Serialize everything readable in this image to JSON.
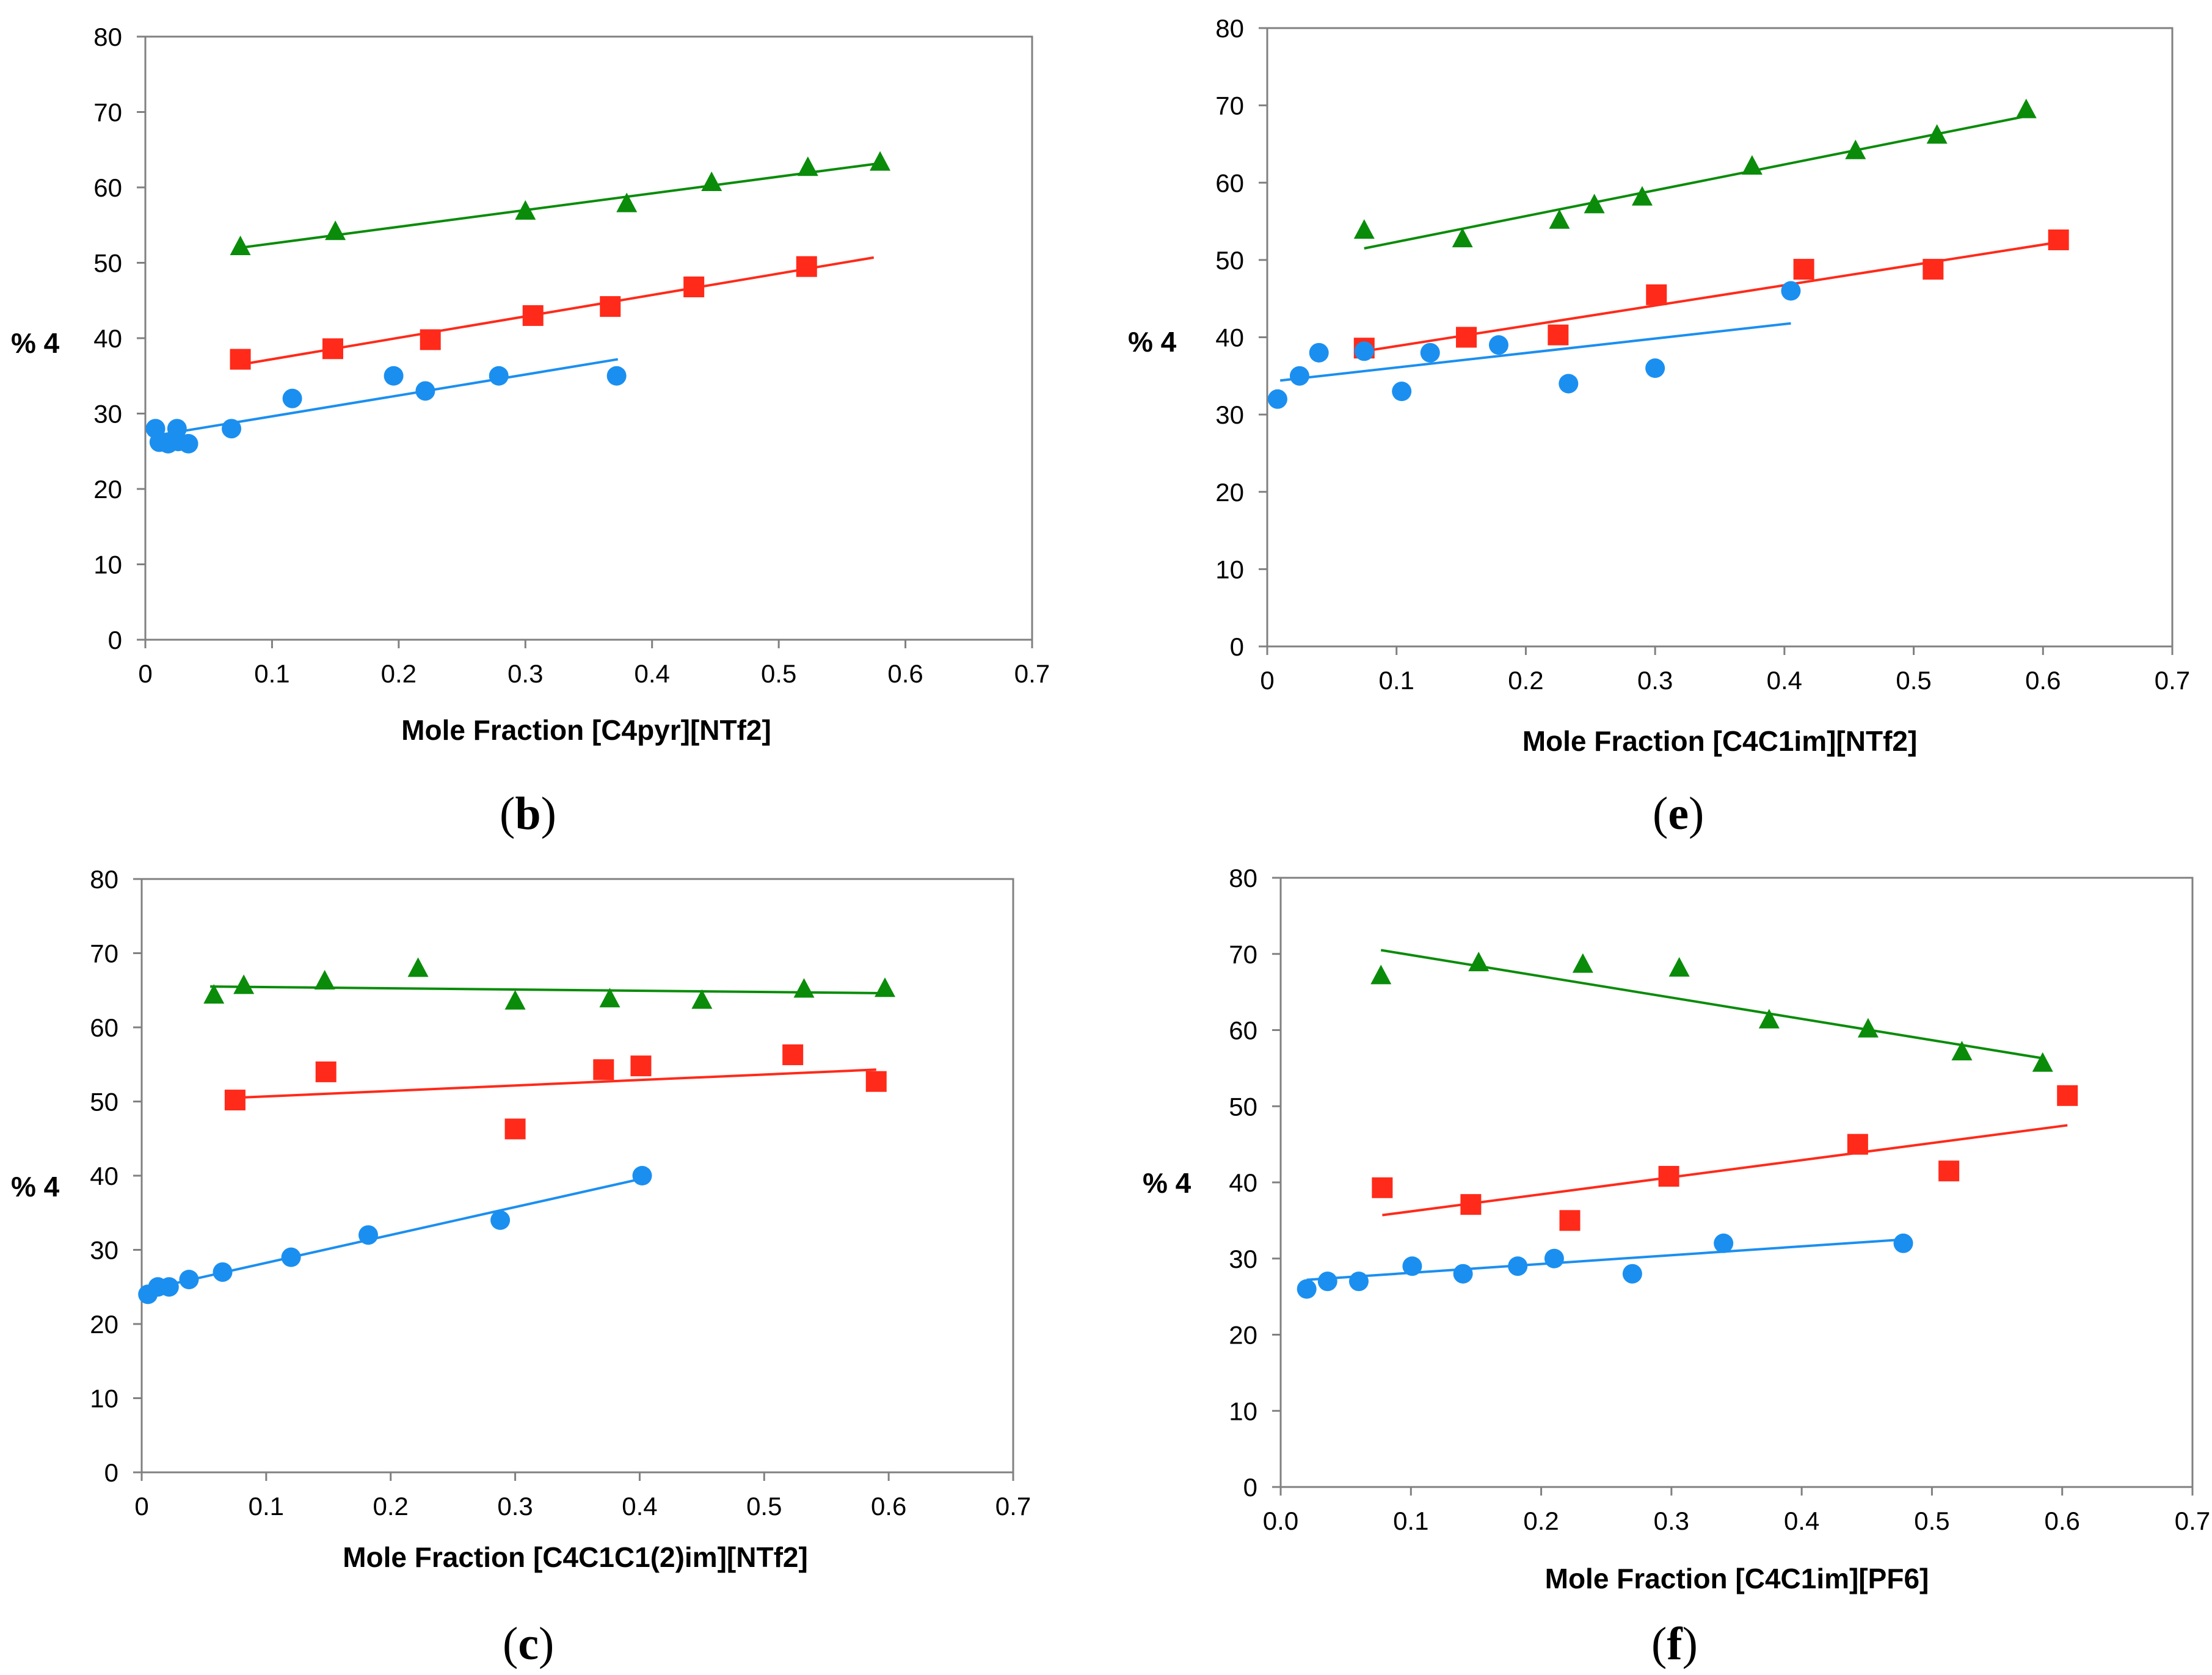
{
  "colors": {
    "green": "#0a8c0a",
    "red": "#ff2a1a",
    "blue": "#1b8ff0",
    "axis": "#808080"
  },
  "chart_data": [
    {
      "id": "b",
      "caption": "b",
      "type": "scatter",
      "title": "",
      "xlabel": "Mole Fraction [C4pyr][NTf2]",
      "ylabel": "% 4",
      "xlim": [
        0,
        0.7
      ],
      "ylim": [
        0,
        80
      ],
      "xticks": [
        "0",
        "0.1",
        "0.2",
        "0.3",
        "0.4",
        "0.5",
        "0.6",
        "0.7"
      ],
      "yticks": [
        "0",
        "10",
        "20",
        "30",
        "40",
        "50",
        "60",
        "70",
        "80"
      ],
      "series": [
        {
          "name": "green",
          "marker": "triangle",
          "color": "#0a8c0a",
          "points": [
            [
              0.075,
              52
            ],
            [
              0.15,
              54
            ],
            [
              0.3,
              56.7
            ],
            [
              0.38,
              57.7
            ],
            [
              0.447,
              60.5
            ],
            [
              0.523,
              62.5
            ],
            [
              0.58,
              63.2
            ]
          ],
          "fit": [
            [
              0.075,
              52
            ],
            [
              0.58,
              63.2
            ]
          ]
        },
        {
          "name": "red",
          "marker": "square",
          "color": "#ff2a1a",
          "points": [
            [
              0.075,
              37.2
            ],
            [
              0.148,
              38.6
            ],
            [
              0.225,
              39.8
            ],
            [
              0.306,
              43
            ],
            [
              0.367,
              44.2
            ],
            [
              0.433,
              46.8
            ],
            [
              0.522,
              49.5
            ]
          ],
          "fit": [
            [
              0.075,
              36.5
            ],
            [
              0.575,
              50.7
            ]
          ]
        },
        {
          "name": "blue",
          "marker": "circle",
          "color": "#1b8ff0",
          "points": [
            [
              0.008,
              28
            ],
            [
              0.011,
              26.2
            ],
            [
              0.018,
              26
            ],
            [
              0.025,
              28
            ],
            [
              0.026,
              26.3
            ],
            [
              0.034,
              26
            ],
            [
              0.068,
              28
            ],
            [
              0.116,
              32
            ],
            [
              0.196,
              35
            ],
            [
              0.221,
              33
            ],
            [
              0.279,
              35
            ],
            [
              0.372,
              35
            ]
          ],
          "fit": [
            [
              0.005,
              27
            ],
            [
              0.373,
              37.2
            ]
          ]
        }
      ]
    },
    {
      "id": "e",
      "caption": "e",
      "type": "scatter",
      "title": "",
      "xlabel": "Mole Fraction [C4C1im][NTf2]",
      "ylabel": "% 4",
      "xlim": [
        0,
        0.7
      ],
      "ylim": [
        0,
        80
      ],
      "xticks": [
        "0",
        "0.1",
        "0.2",
        "0.3",
        "0.4",
        "0.5",
        "0.6",
        "0.7"
      ],
      "yticks": [
        "0",
        "10",
        "20",
        "30",
        "40",
        "50",
        "60",
        "70",
        "80"
      ],
      "series": [
        {
          "name": "green",
          "marker": "triangle",
          "color": "#0a8c0a",
          "points": [
            [
              0.075,
              53.7
            ],
            [
              0.151,
              52.6
            ],
            [
              0.226,
              55
            ],
            [
              0.253,
              57
            ],
            [
              0.29,
              58
            ],
            [
              0.375,
              62
            ],
            [
              0.455,
              64
            ],
            [
              0.518,
              66
            ],
            [
              0.587,
              69.3
            ]
          ],
          "fit": [
            [
              0.075,
              51.5
            ],
            [
              0.59,
              68.7
            ]
          ]
        },
        {
          "name": "red",
          "marker": "square",
          "color": "#ff2a1a",
          "points": [
            [
              0.075,
              38.6
            ],
            [
              0.154,
              40
            ],
            [
              0.225,
              40.3
            ],
            [
              0.301,
              45.5
            ],
            [
              0.415,
              48.8
            ],
            [
              0.515,
              48.8
            ],
            [
              0.612,
              52.6
            ]
          ],
          "fit": [
            [
              0.075,
              38.2
            ],
            [
              0.612,
              52.3
            ]
          ]
        },
        {
          "name": "blue",
          "marker": "circle",
          "color": "#1b8ff0",
          "points": [
            [
              0.008,
              32
            ],
            [
              0.025,
              35
            ],
            [
              0.04,
              38
            ],
            [
              0.075,
              38.2
            ],
            [
              0.104,
              33
            ],
            [
              0.126,
              38
            ],
            [
              0.179,
              39
            ],
            [
              0.233,
              34
            ],
            [
              0.3,
              36
            ],
            [
              0.405,
              46
            ]
          ],
          "fit": [
            [
              0.01,
              34.4
            ],
            [
              0.405,
              41.8
            ]
          ]
        }
      ]
    },
    {
      "id": "c",
      "caption": "c",
      "type": "scatter",
      "title": "",
      "xlabel": "Mole Fraction [C4C1C1(2)im][NTf2]",
      "ylabel": "% 4",
      "xlim": [
        0,
        0.7
      ],
      "ylim": [
        0,
        80
      ],
      "xticks": [
        "0",
        "0.1",
        "0.2",
        "0.3",
        "0.4",
        "0.5",
        "0.6",
        "0.7"
      ],
      "yticks": [
        "0",
        "10",
        "20",
        "30",
        "40",
        "50",
        "60",
        "70",
        "80"
      ],
      "series": [
        {
          "name": "green",
          "marker": "triangle",
          "color": "#0a8c0a",
          "points": [
            [
              0.058,
              64.2
            ],
            [
              0.082,
              65.5
            ],
            [
              0.147,
              66.1
            ],
            [
              0.222,
              67.8
            ],
            [
              0.3,
              63.4
            ],
            [
              0.376,
              63.7
            ],
            [
              0.45,
              63.5
            ],
            [
              0.532,
              65
            ],
            [
              0.597,
              65.1
            ]
          ],
          "fit": [
            [
              0.055,
              65.5
            ],
            [
              0.6,
              64.6
            ]
          ]
        },
        {
          "name": "red",
          "marker": "square",
          "color": "#ff2a1a",
          "points": [
            [
              0.075,
              50.2
            ],
            [
              0.148,
              54
            ],
            [
              0.3,
              46.3
            ],
            [
              0.371,
              54.3
            ],
            [
              0.401,
              54.8
            ],
            [
              0.523,
              56.3
            ],
            [
              0.59,
              52.7
            ]
          ],
          "fit": [
            [
              0.075,
              50.5
            ],
            [
              0.59,
              54.3
            ]
          ]
        },
        {
          "name": "blue",
          "marker": "circle",
          "color": "#1b8ff0",
          "points": [
            [
              0.005,
              24
            ],
            [
              0.013,
              25
            ],
            [
              0.022,
              25
            ],
            [
              0.038,
              26
            ],
            [
              0.065,
              27
            ],
            [
              0.12,
              29
            ],
            [
              0.182,
              32
            ],
            [
              0.288,
              34
            ],
            [
              0.402,
              40
            ]
          ],
          "fit": [
            [
              0.003,
              24.6
            ],
            [
              0.402,
              39.6
            ]
          ]
        }
      ]
    },
    {
      "id": "f",
      "caption": "f",
      "type": "scatter",
      "title": "",
      "xlabel": "Mole Fraction [C4C1im][PF6]",
      "ylabel": "% 4",
      "xlim": [
        0,
        0.7
      ],
      "ylim": [
        0,
        80
      ],
      "xticks": [
        "0.0",
        "0.1",
        "0.2",
        "0.3",
        "0.4",
        "0.5",
        "0.6",
        "0.7"
      ],
      "yticks": [
        "0",
        "10",
        "20",
        "30",
        "40",
        "50",
        "60",
        "70",
        "80"
      ],
      "series": [
        {
          "name": "green",
          "marker": "triangle",
          "color": "#0a8c0a",
          "points": [
            [
              0.077,
              67
            ],
            [
              0.152,
              68.7
            ],
            [
              0.232,
              68.5
            ],
            [
              0.306,
              68
            ],
            [
              0.375,
              61.2
            ],
            [
              0.451,
              60
            ],
            [
              0.523,
              57
            ],
            [
              0.585,
              55.5
            ]
          ],
          "fit": [
            [
              0.077,
              70.5
            ],
            [
              0.585,
              56.3
            ]
          ]
        },
        {
          "name": "red",
          "marker": "square",
          "color": "#ff2a1a",
          "points": [
            [
              0.078,
              39.3
            ],
            [
              0.146,
              37.1
            ],
            [
              0.222,
              35
            ],
            [
              0.298,
              40.8
            ],
            [
              0.443,
              45
            ],
            [
              0.513,
              41.5
            ],
            [
              0.604,
              51.4
            ]
          ],
          "fit": [
            [
              0.078,
              35.7
            ],
            [
              0.604,
              47.5
            ]
          ]
        },
        {
          "name": "blue",
          "marker": "circle",
          "color": "#1b8ff0",
          "points": [
            [
              0.02,
              26
            ],
            [
              0.036,
              27
            ],
            [
              0.06,
              27
            ],
            [
              0.101,
              29
            ],
            [
              0.14,
              28
            ],
            [
              0.182,
              29
            ],
            [
              0.21,
              30
            ],
            [
              0.27,
              28
            ],
            [
              0.34,
              32
            ],
            [
              0.478,
              32
            ]
          ],
          "fit": [
            [
              0.02,
              27.2
            ],
            [
              0.478,
              32.5
            ]
          ]
        }
      ]
    }
  ]
}
